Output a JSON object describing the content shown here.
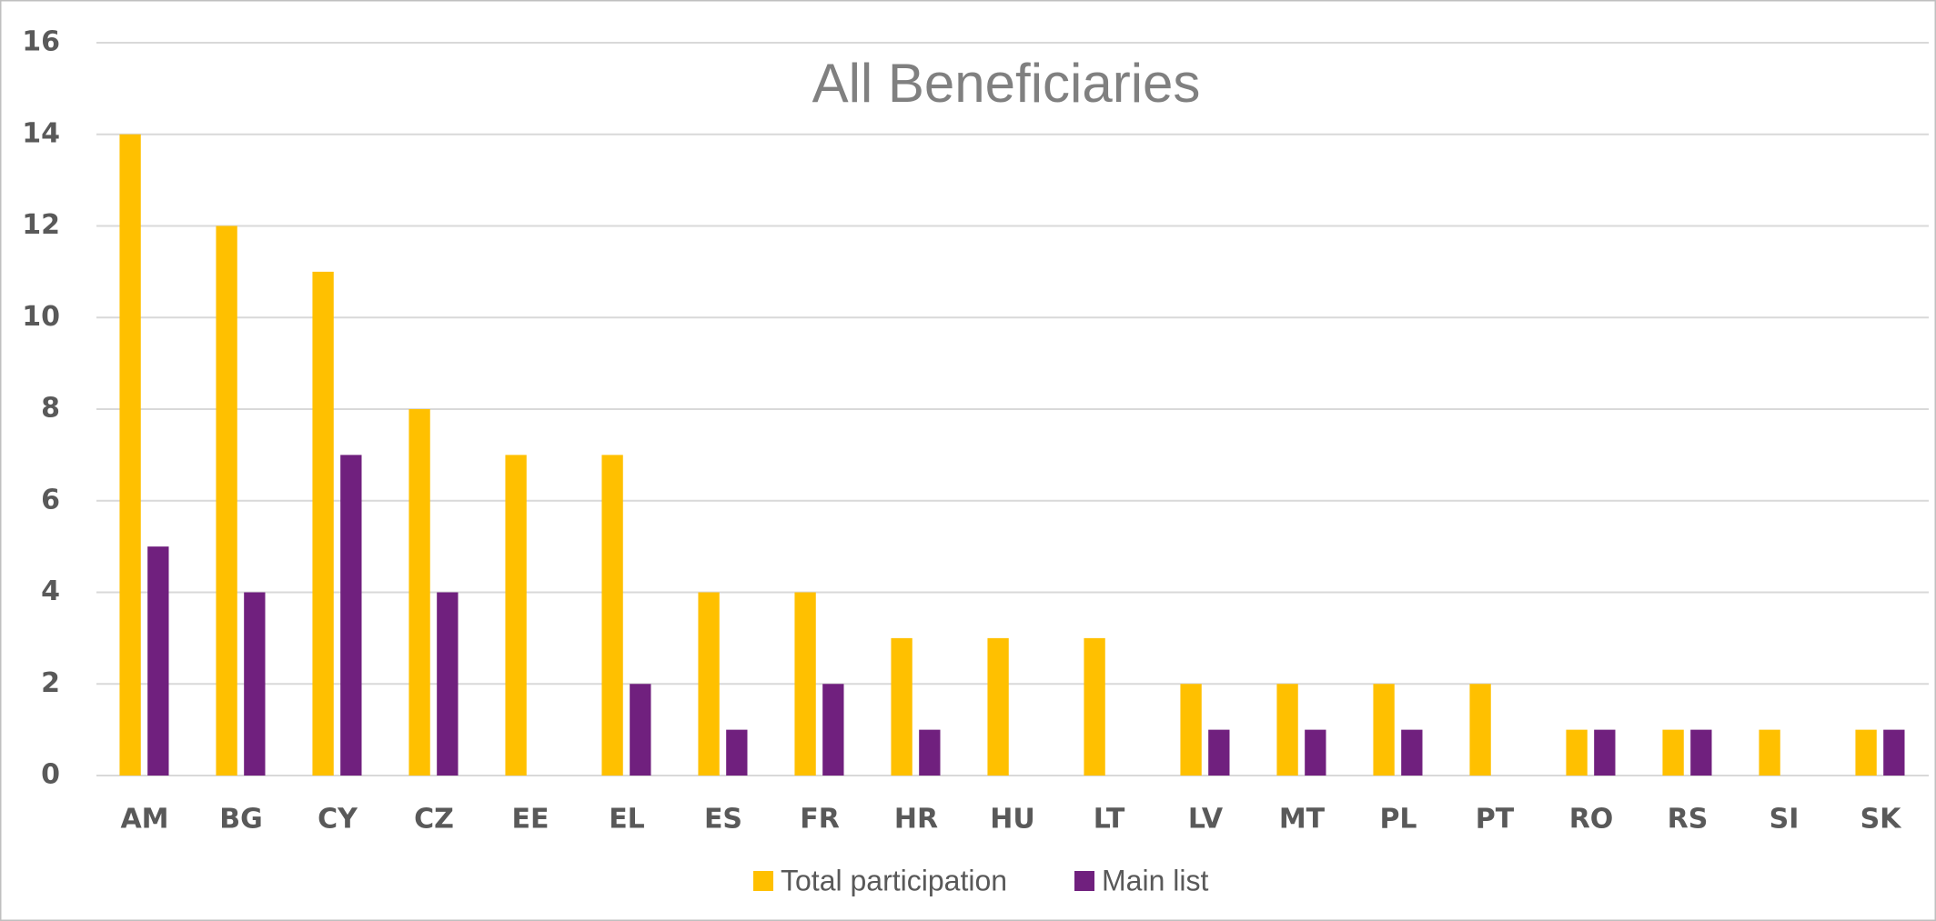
{
  "chart_data": {
    "type": "bar",
    "title": "All Beneficiaries",
    "categories": [
      "AM",
      "BG",
      "CY",
      "CZ",
      "EE",
      "EL",
      "ES",
      "FR",
      "HR",
      "HU",
      "LT",
      "LV",
      "MT",
      "PL",
      "PT",
      "RO",
      "RS",
      "SI",
      "SK"
    ],
    "series": [
      {
        "name": "Total participation",
        "color": "#ffc000",
        "values": [
          14,
          12,
          11,
          8,
          7,
          7,
          4,
          4,
          3,
          3,
          3,
          2,
          2,
          2,
          2,
          1,
          1,
          1,
          1
        ]
      },
      {
        "name": "Main list",
        "color": "#70207e",
        "values": [
          5,
          4,
          7,
          4,
          0,
          2,
          1,
          2,
          1,
          0,
          0,
          1,
          1,
          1,
          0,
          1,
          1,
          0,
          1
        ]
      }
    ],
    "ylim": [
      0,
      16
    ],
    "yticks": [
      0,
      2,
      4,
      6,
      8,
      10,
      12,
      14,
      16
    ],
    "grid": true,
    "legend": "bottom"
  }
}
